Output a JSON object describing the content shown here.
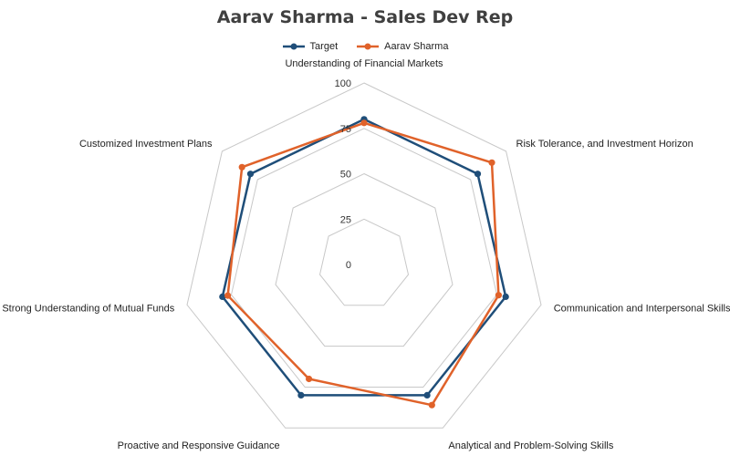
{
  "chart_data": {
    "type": "radar",
    "title": "Aarav Sharma - Sales Dev Rep",
    "axes": [
      "Understanding of Financial Markets",
      "Risk Tolerance, and Investment Horizon",
      "Communication and Interpersonal Skills",
      "Analytical and Problem-Solving Skills",
      "Proactive and Responsive Guidance",
      "Strong Understanding of Mutual Funds",
      "Customized Investment Plans"
    ],
    "ticks": [
      0,
      25,
      50,
      75,
      100
    ],
    "tick_labels": [
      "0",
      "25",
      "50",
      "75",
      "100"
    ],
    "range": [
      0,
      100
    ],
    "series": [
      {
        "name": "Target",
        "color": "#1f4e79",
        "values": [
          80,
          80,
          80,
          80,
          80,
          80,
          80
        ]
      },
      {
        "name": "Aarav Sharma",
        "color": "#e0622a",
        "values": [
          78,
          90,
          76,
          86,
          70,
          77,
          86
        ]
      }
    ],
    "legend": "top",
    "grid": true
  }
}
